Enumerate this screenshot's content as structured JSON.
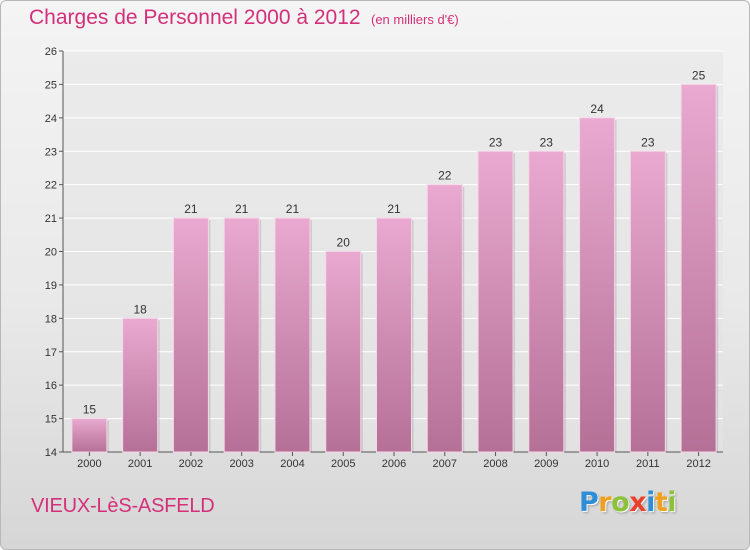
{
  "header": {
    "title": "Charges de Personnel 2000 à 2012",
    "subtitle": "(en milliers d'€)"
  },
  "footer": {
    "location": "VIEUX-LèS-ASFELD",
    "logo_letters": [
      {
        "char": "P",
        "color": "#2e8fd6"
      },
      {
        "char": "r",
        "color": "#f0a020"
      },
      {
        "char": "o",
        "color": "#8cc23a"
      },
      {
        "char": "x",
        "color": "#e8412e"
      },
      {
        "char": "i",
        "color": "#2e8fd6"
      },
      {
        "char": "t",
        "color": "#f0a020"
      },
      {
        "char": "i",
        "color": "#8cc23a"
      }
    ]
  },
  "colors": {
    "bar_top": "#e9a9d0",
    "bar_bottom": "#b57096",
    "title": "#d4307a"
  },
  "chart_data": {
    "type": "bar",
    "categories": [
      "2000",
      "2001",
      "2002",
      "2003",
      "2004",
      "2005",
      "2006",
      "2007",
      "2008",
      "2009",
      "2010",
      "2011",
      "2012"
    ],
    "values": [
      15,
      18,
      21,
      21,
      21,
      20,
      21,
      22,
      23,
      23,
      24,
      23,
      25
    ],
    "data_labels": [
      "15",
      "18",
      "21",
      "21",
      "21",
      "20",
      "21",
      "22",
      "23",
      "23",
      "24",
      "23",
      "25"
    ],
    "ylim": [
      14,
      26
    ],
    "yticks": [
      "14",
      "15",
      "16",
      "17",
      "18",
      "19",
      "20",
      "21",
      "22",
      "23",
      "24",
      "25",
      "26"
    ],
    "grid": "horizontal",
    "xlabel": "",
    "ylabel": ""
  }
}
